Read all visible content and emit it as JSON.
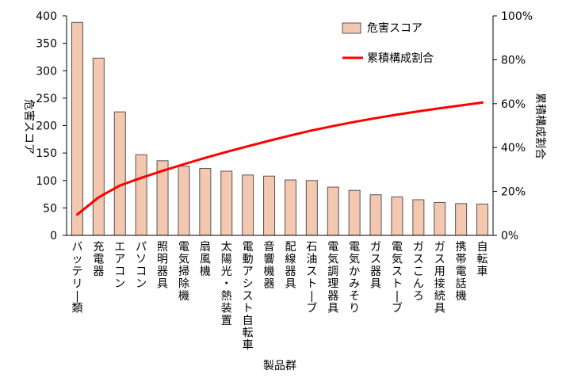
{
  "chart_data": {
    "type": "bar",
    "xlabel": "製品群",
    "ylabel_left": "危害スコア",
    "ylabel_right": "累積構成割合",
    "ylim_left": [
      0,
      400
    ],
    "yticks_left": [
      "0",
      "50",
      "100",
      "150",
      "200",
      "250",
      "300",
      "350",
      "400"
    ],
    "ylim_right": [
      0,
      100
    ],
    "yticks_right": [
      "0%",
      "20%",
      "40%",
      "60%",
      "80%",
      "100%"
    ],
    "grid": false,
    "legend_position": "top-right",
    "categories": [
      "バッテリー類",
      "充電器",
      "エアコン",
      "パソコン",
      "照明器具",
      "電気掃除機",
      "扇風機",
      "太陽光・熱装置",
      "電動アシスト自転車",
      "音響機器",
      "配線器具",
      "石油ストーブ",
      "電気調理器具",
      "電気かみそり",
      "ガス器具",
      "電気ストーブ",
      "ガスこんろ",
      "ガス用接続具",
      "携帯電話機",
      "自転車"
    ],
    "series": [
      {
        "name": "危害スコア",
        "type": "bar",
        "axis": "left",
        "color": "#F4C7B0",
        "values": [
          388,
          323,
          225,
          147,
          136,
          126,
          122,
          117,
          110,
          108,
          101,
          100,
          88,
          82,
          74,
          70,
          65,
          60,
          58,
          57
        ]
      },
      {
        "name": "累積構成割合",
        "type": "line",
        "axis": "right",
        "color": "#FF0000",
        "values": [
          9.5,
          17.3,
          22.7,
          26.2,
          29.4,
          32.4,
          35.3,
          38.0,
          40.6,
          43.1,
          45.5,
          47.8,
          49.8,
          51.7,
          53.4,
          55.0,
          56.5,
          57.9,
          59.2,
          60.5
        ]
      }
    ]
  }
}
